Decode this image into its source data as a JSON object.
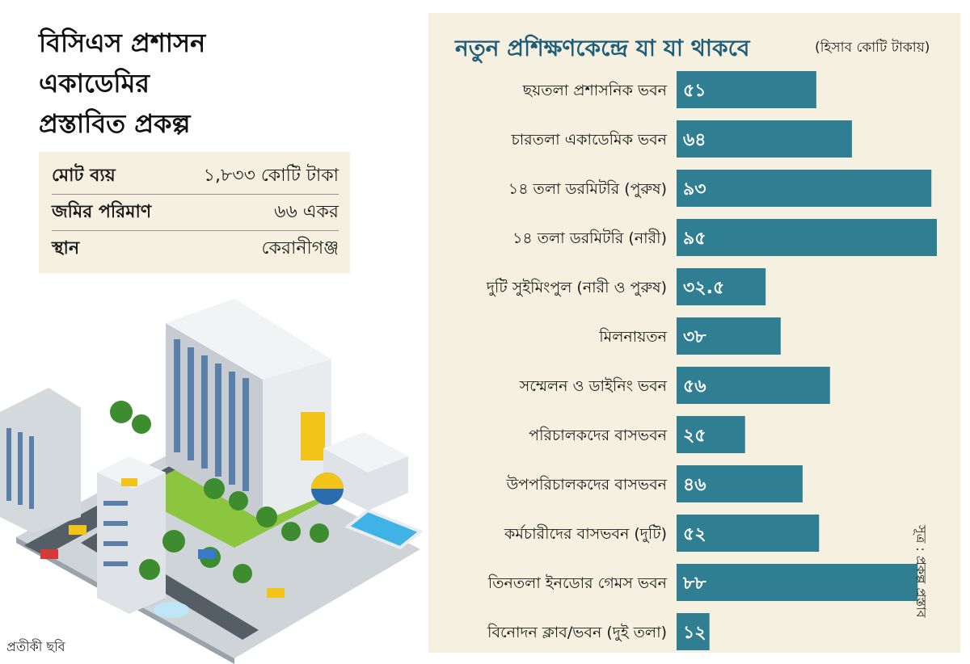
{
  "headline": {
    "line1": "বিসিএস প্রশাসন",
    "line2": "একাডেমির",
    "line3": "প্রস্তাবিত প্রকল্প"
  },
  "info_table": [
    {
      "label": "মোট ব্যয়",
      "value": "১,৮৩৩ কোটি টাকা"
    },
    {
      "label": "জমির পরিমাণ",
      "value": "৬৬ একর"
    },
    {
      "label": "স্থান",
      "value": "কেরানীগঞ্জ"
    }
  ],
  "illustration_caption": "প্রতীকী ছবি",
  "source": "সূত্র : প্রকল্প প্রস্তাব",
  "colors": {
    "bar": "#2f7e92",
    "panel": "#f6f0e1",
    "title": "#1d5d77"
  },
  "chart_data": {
    "type": "bar",
    "orientation": "horizontal",
    "title": "নতুন প্রশিক্ষণকেন্দ্রে যা যা থাকবে",
    "subtitle": "(হিসাব কোটি টাকায়)",
    "categories": [
      "ছয়তলা প্রশাসনিক ভবন",
      "চারতলা একাডেমিক ভবন",
      "১৪ তলা ডরমিটরি (পুরুষ)",
      "১৪ তলা ডরমিটরি (নারী)",
      "দুটি সুইমিংপুল (নারী ও পুরুষ)",
      "মিলনায়তন",
      "সম্মেলন ও ডাইনিং ভবন",
      "পরিচালকদের বাসভবন",
      "উপপরিচালকদের বাসভবন",
      "কর্মচারীদের বাসভবন (দুটি)",
      "তিনতলা ইনডোর গেমস ভবন",
      "বিনোদন ক্লাব/ভবন (দুই তলা)"
    ],
    "values": [
      51,
      64,
      93,
      95,
      32.5,
      38,
      56,
      25,
      46,
      52,
      88,
      12
    ],
    "value_labels": [
      "৫১",
      "৬৪",
      "৯৩",
      "৯৫",
      "৩২.৫",
      "৩৮",
      "৫৬",
      "২৫",
      "৪৬",
      "৫২",
      "৮৮",
      "১২"
    ],
    "xlim": [
      0,
      95
    ],
    "grid": false,
    "legend": "none"
  }
}
